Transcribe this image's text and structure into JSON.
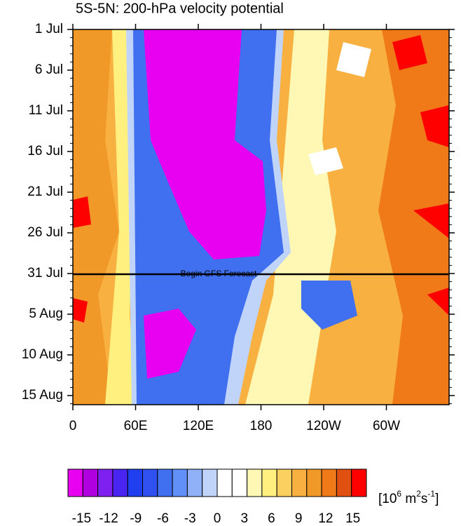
{
  "chart_data": {
    "type": "hovmoller",
    "title": "5S-5N: 200-hPa velocity potential",
    "categories": [
      "1 Jul",
      "6 Jul",
      "11 Jul",
      "16 Jul",
      "21 Jul",
      "26 Jul",
      "31 Jul",
      "5 Aug",
      "10 Aug",
      "15 Aug"
    ],
    "xlim": [
      0,
      360
    ],
    "xticks": [
      0,
      {
        "value": 60,
        "label": "60E"
      },
      {
        "value": 120,
        "label": "120E"
      },
      180,
      {
        "value": 240,
        "label": "120W"
      },
      {
        "value": 300,
        "label": "60W"
      }
    ],
    "annotation": "Begin GFS Forecast",
    "colorbar": {
      "colors": [
        "#e800f0",
        "#b000e0",
        "#8020f0",
        "#4a24f0",
        "#2040f0",
        "#3050f0",
        "#4070f0",
        "#6090f8",
        "#90b0f8",
        "#c0d4fa",
        "#ffffff",
        "#ffffff",
        "#fff8b4",
        "#fff080",
        "#fcd060",
        "#f8b040",
        "#f09828",
        "#f07a18",
        "#e05010",
        "#ff0000"
      ],
      "lim": [
        -16.5,
        16.5
      ],
      "ticks": [
        -15,
        -12,
        -9,
        -6,
        -3,
        0,
        3,
        6,
        9,
        12,
        15
      ],
      "units": [
        "[10",
        "6",
        " m",
        "2",
        "s",
        "-1",
        "]"
      ]
    }
  }
}
